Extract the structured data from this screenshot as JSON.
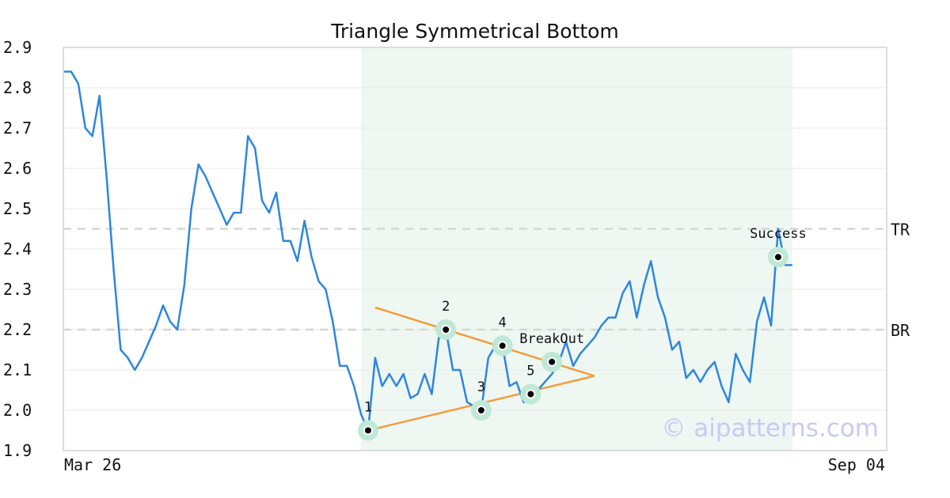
{
  "chart_data": {
    "type": "line",
    "title": "Triangle Symmetrical Bottom",
    "xlabel": "",
    "ylabel": "",
    "x_tick_labels": [
      "Mar 26",
      "Sep 04"
    ],
    "y_ticks": [
      "1.9",
      "2.0",
      "2.1",
      "2.2",
      "2.3",
      "2.4",
      "2.5",
      "2.6",
      "2.7",
      "2.8",
      "2.9"
    ],
    "ylim": [
      1.9,
      2.9
    ],
    "grid": true,
    "x_count": 115,
    "series": [
      {
        "color": "#2e86de",
        "values": [
          2.84,
          2.84,
          2.81,
          2.7,
          2.68,
          2.78,
          2.58,
          2.35,
          2.15,
          2.13,
          2.1,
          2.13,
          2.17,
          2.21,
          2.26,
          2.22,
          2.2,
          2.31,
          2.5,
          2.61,
          2.58,
          2.54,
          2.5,
          2.46,
          2.49,
          2.49,
          2.68,
          2.65,
          2.52,
          2.49,
          2.54,
          2.42,
          2.42,
          2.37,
          2.47,
          2.38,
          2.32,
          2.3,
          2.22,
          2.11,
          2.11,
          2.06,
          1.99,
          1.95,
          2.13,
          2.06,
          2.09,
          2.06,
          2.09,
          2.03,
          2.04,
          2.09,
          2.04,
          2.18,
          2.2,
          2.1,
          2.1,
          2.02,
          2.01,
          2.0,
          2.13,
          2.16,
          2.16,
          2.06,
          2.07,
          2.02,
          2.03,
          2.05,
          2.07,
          2.09,
          2.12,
          2.17,
          2.11,
          2.14,
          2.16,
          2.18,
          2.21,
          2.23,
          2.23,
          2.29,
          2.32,
          2.23,
          2.31,
          2.37,
          2.28,
          2.23,
          2.15,
          2.17,
          2.08,
          2.1,
          2.07,
          2.1,
          2.12,
          2.06,
          2.02,
          2.14,
          2.1,
          2.07,
          2.22,
          2.28,
          2.21,
          2.45,
          2.36,
          2.36
        ]
      }
    ],
    "pattern_region": {
      "x_start": 42,
      "x_end": 103,
      "color": "#eef7f2"
    },
    "reference_lines": [
      {
        "label": "TR",
        "value": 2.45
      },
      {
        "label": "BR",
        "value": 2.2
      }
    ],
    "trendlines": [
      {
        "color": "#f39c3d",
        "points": [
          [
            44,
            2.255
          ],
          [
            75,
            2.085
          ]
        ]
      },
      {
        "color": "#f39c3d",
        "points": [
          [
            43,
            1.95
          ],
          [
            75,
            2.085
          ]
        ]
      }
    ],
    "pattern_points": [
      {
        "label": "1",
        "x": 43,
        "y": 1.95
      },
      {
        "label": "2",
        "x": 54,
        "y": 2.2
      },
      {
        "label": "3",
        "x": 59,
        "y": 2.0
      },
      {
        "label": "4",
        "x": 62,
        "y": 2.16
      },
      {
        "label": "5",
        "x": 66,
        "y": 2.04
      },
      {
        "label": "BreakOut",
        "x": 69,
        "y": 2.12
      },
      {
        "label": "Success",
        "x": 101,
        "y": 2.38
      }
    ]
  },
  "watermark": "© aipatterns.com"
}
